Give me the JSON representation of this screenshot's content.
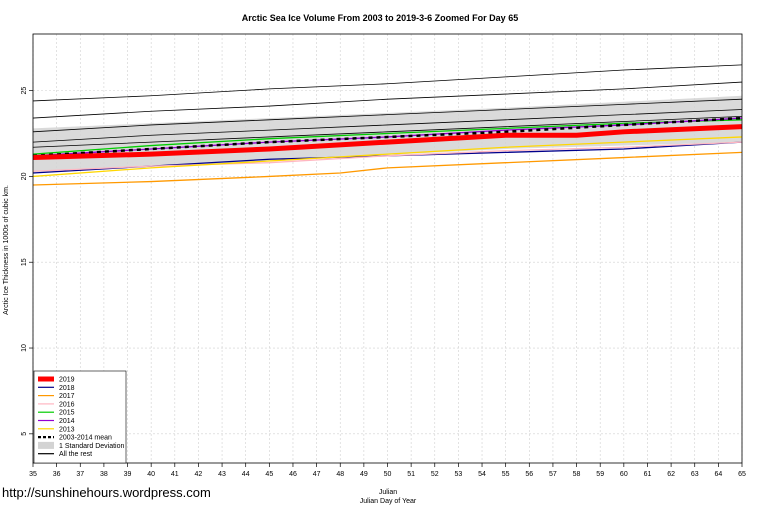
{
  "chart_data": {
    "type": "line",
    "title": "Arctic Sea Ice Volume From 2003 to 2019-3-6 Zoomed For Day 65",
    "xlabel": "Julian",
    "xlabel2": "Julian Day of Year",
    "ylabel": "Arctic Ice Thickness in 1000s of cubic km.",
    "xlim": [
      35,
      65
    ],
    "ylim": [
      3.3,
      28.3
    ],
    "xticks": [
      35,
      36,
      37,
      38,
      39,
      40,
      41,
      42,
      43,
      44,
      45,
      46,
      47,
      48,
      49,
      50,
      51,
      52,
      53,
      54,
      55,
      56,
      57,
      58,
      59,
      60,
      61,
      62,
      63,
      64,
      65
    ],
    "yticks": [
      5,
      10,
      15,
      20,
      25
    ],
    "grid": true,
    "legend_position": "bottom-left",
    "sd_band": {
      "name": "1 Standard Deviation",
      "color": "#d3d3d3",
      "x": [
        35,
        45,
        55,
        65
      ],
      "low": [
        20.2,
        20.9,
        21.6,
        22.0
      ],
      "high": [
        22.8,
        23.4,
        24.0,
        24.7
      ]
    },
    "series": [
      {
        "name": "2019",
        "color": "#ff0000",
        "width": 5,
        "dash": "",
        "x": [
          35,
          40,
          45,
          50,
          55,
          58,
          60,
          65
        ],
        "values": [
          21.1,
          21.3,
          21.6,
          22.0,
          22.4,
          22.4,
          22.6,
          22.9
        ]
      },
      {
        "name": "2018",
        "color": "#00008b",
        "width": 1.3,
        "dash": "",
        "x": [
          35,
          40,
          45,
          50,
          55,
          60,
          65
        ],
        "values": [
          20.2,
          20.6,
          21.0,
          21.2,
          21.4,
          21.6,
          22.0
        ]
      },
      {
        "name": "2017",
        "color": "#ff9900",
        "width": 1.3,
        "dash": "",
        "x": [
          35,
          40,
          45,
          48,
          50,
          55,
          60,
          65
        ],
        "values": [
          19.5,
          19.7,
          20.0,
          20.2,
          20.5,
          20.8,
          21.1,
          21.4
        ]
      },
      {
        "name": "2016",
        "color": "#ffb6c1",
        "width": 1.3,
        "dash": "",
        "x": [
          35,
          40,
          45,
          50,
          55,
          60,
          65
        ],
        "values": [
          20.3,
          20.6,
          20.8,
          21.2,
          21.5,
          21.7,
          22.0
        ]
      },
      {
        "name": "2015",
        "color": "#00cc00",
        "width": 1.3,
        "dash": "",
        "x": [
          35,
          40,
          45,
          50,
          55,
          60,
          65
        ],
        "values": [
          21.3,
          21.8,
          22.2,
          22.5,
          22.8,
          23.1,
          23.3
        ]
      },
      {
        "name": "2014",
        "color": "#9400d3",
        "width": 1.3,
        "dash": "",
        "x": [
          35,
          40,
          45,
          50,
          55,
          60,
          65
        ],
        "values": [
          21.2,
          21.6,
          22.0,
          22.3,
          22.7,
          23.0,
          23.4
        ]
      },
      {
        "name": "2013",
        "color": "#ffd700",
        "width": 1.3,
        "dash": "",
        "x": [
          35,
          40,
          45,
          50,
          55,
          60,
          65
        ],
        "values": [
          20.0,
          20.5,
          20.9,
          21.3,
          21.7,
          22.0,
          22.3
        ]
      },
      {
        "name": "2003-2014 mean",
        "color": "#000000",
        "width": 2.5,
        "dash": "4 4",
        "x": [
          35,
          40,
          45,
          50,
          55,
          60,
          65
        ],
        "values": [
          21.2,
          21.6,
          22.0,
          22.3,
          22.6,
          23.0,
          23.4
        ]
      },
      {
        "name": "All the rest",
        "color": "#000000",
        "width": 0.8,
        "dash": "",
        "x": [
          35,
          40,
          45,
          50,
          55,
          60,
          65
        ],
        "values": [
          24.4,
          24.7,
          25.1,
          25.4,
          25.8,
          26.2,
          26.5
        ]
      },
      {
        "name": "",
        "color": "#000000",
        "width": 0.8,
        "dash": "",
        "x": [
          35,
          40,
          45,
          50,
          55,
          60,
          65
        ],
        "values": [
          23.4,
          23.8,
          24.1,
          24.5,
          24.8,
          25.1,
          25.5
        ]
      },
      {
        "name": "",
        "color": "#000000",
        "width": 0.8,
        "dash": "",
        "x": [
          35,
          40,
          45,
          50,
          55,
          60,
          65
        ],
        "values": [
          22.6,
          23.0,
          23.3,
          23.6,
          23.9,
          24.2,
          24.5
        ]
      },
      {
        "name": "",
        "color": "#000000",
        "width": 0.8,
        "dash": "",
        "x": [
          35,
          40,
          45,
          50,
          55,
          60,
          65
        ],
        "values": [
          22.0,
          22.4,
          22.7,
          23.0,
          23.3,
          23.6,
          23.9
        ]
      },
      {
        "name": "",
        "color": "#000000",
        "width": 0.8,
        "dash": "",
        "x": [
          35,
          40,
          45,
          50,
          55,
          60,
          65
        ],
        "values": [
          21.7,
          22.0,
          22.3,
          22.6,
          22.9,
          23.2,
          23.5
        ]
      }
    ],
    "legend": [
      "2019",
      "2018",
      "2017",
      "2016",
      "2015",
      "2014",
      "2013",
      "2003-2014 mean",
      "1 Standard Deviation",
      "All the rest"
    ]
  },
  "watermark": "http://sunshinehours.wordpress.com"
}
